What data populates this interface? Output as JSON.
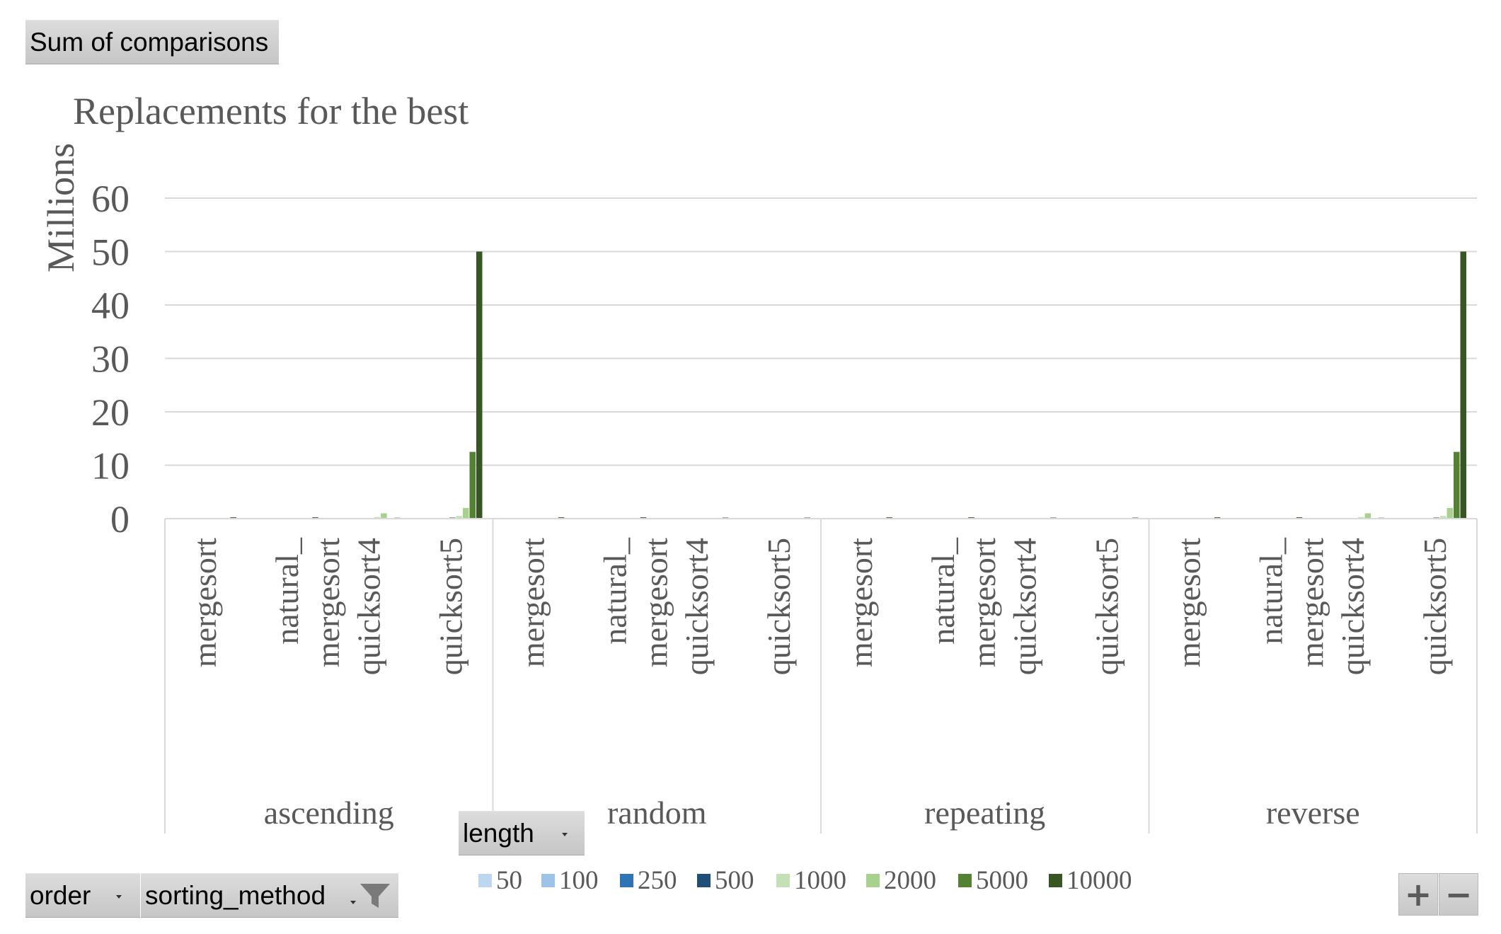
{
  "pivot": {
    "value_field": "Sum of comparisons",
    "legend_field": "length",
    "axis_fields": [
      "order",
      "sorting_method"
    ],
    "zoom_in": "+",
    "zoom_out": "−"
  },
  "icons": {
    "filter": "filter-icon",
    "dropdown": "chevron-down-icon"
  },
  "chart_data": {
    "type": "bar",
    "title": "Replacements for the best",
    "ylabel": "Millions",
    "xlabel": "",
    "ylim": [
      0,
      60
    ],
    "yticks": [
      0,
      10,
      20,
      30,
      40,
      50,
      60
    ],
    "grid": true,
    "legend_position": "bottom",
    "groups": [
      {
        "name": "ascending",
        "categories": [
          "mergesort",
          "natural_mergesort",
          "quicksort4",
          "quicksort5"
        ]
      },
      {
        "name": "random",
        "categories": [
          "mergesort",
          "natural_mergesort",
          "quicksort4",
          "quicksort5"
        ]
      },
      {
        "name": "repeating",
        "categories": [
          "mergesort",
          "natural_mergesort",
          "quicksort4",
          "quicksort5"
        ]
      },
      {
        "name": "reverse",
        "categories": [
          "mergesort",
          "natural_mergesort",
          "quicksort4",
          "quicksort5"
        ]
      }
    ],
    "series": [
      {
        "name": "50",
        "color": "#bdd7ee",
        "values": [
          0.001,
          0.001,
          0.0015,
          0.002,
          0.001,
          0.001,
          0.001,
          0.001,
          0.001,
          0.001,
          0.001,
          0.001,
          0.001,
          0.001,
          0.0015,
          0.002
        ]
      },
      {
        "name": "100",
        "color": "#9dc3e6",
        "values": [
          0.002,
          0.002,
          0.006,
          0.008,
          0.002,
          0.002,
          0.002,
          0.002,
          0.002,
          0.002,
          0.002,
          0.002,
          0.002,
          0.002,
          0.006,
          0.008
        ]
      },
      {
        "name": "250",
        "color": "#2e75b6",
        "values": [
          0.006,
          0.006,
          0.03,
          0.05,
          0.006,
          0.006,
          0.005,
          0.005,
          0.006,
          0.006,
          0.005,
          0.005,
          0.006,
          0.006,
          0.03,
          0.05
        ]
      },
      {
        "name": "500",
        "color": "#1f4e79",
        "values": [
          0.013,
          0.013,
          0.125,
          0.2,
          0.013,
          0.013,
          0.01,
          0.01,
          0.013,
          0.013,
          0.01,
          0.01,
          0.013,
          0.013,
          0.125,
          0.2
        ]
      },
      {
        "name": "1000",
        "color": "#c5e0b4",
        "values": [
          0.028,
          0.028,
          0.3,
          0.5,
          0.028,
          0.028,
          0.02,
          0.02,
          0.028,
          0.028,
          0.02,
          0.02,
          0.028,
          0.028,
          0.3,
          0.5
        ]
      },
      {
        "name": "2000",
        "color": "#a9d18e",
        "values": [
          0.06,
          0.06,
          1.0,
          2.0,
          0.06,
          0.06,
          0.04,
          0.04,
          0.06,
          0.06,
          0.04,
          0.04,
          0.06,
          0.06,
          1.0,
          2.0
        ]
      },
      {
        "name": "5000",
        "color": "#548235",
        "values": [
          0.12,
          0.12,
          0.08,
          12.5,
          0.12,
          0.12,
          0.1,
          0.1,
          0.12,
          0.12,
          0.1,
          0.1,
          0.12,
          0.12,
          0.08,
          12.5
        ]
      },
      {
        "name": "10000",
        "color": "#375623",
        "values": [
          0.25,
          0.25,
          0.17,
          50.0,
          0.25,
          0.25,
          0.2,
          0.2,
          0.25,
          0.25,
          0.2,
          0.2,
          0.25,
          0.25,
          0.17,
          50.0
        ]
      }
    ]
  }
}
